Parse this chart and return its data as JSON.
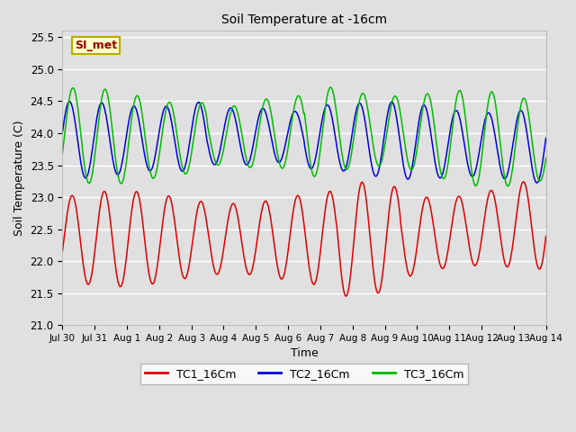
{
  "title": "Soil Temperature at -16cm",
  "xlabel": "Time",
  "ylabel": "Soil Temperature (C)",
  "ylim": [
    21.0,
    25.6
  ],
  "yticks": [
    21.0,
    21.5,
    22.0,
    22.5,
    23.0,
    23.5,
    24.0,
    24.5,
    25.0,
    25.5
  ],
  "bg_color": "#e0e0e0",
  "plot_bg_color": "#e0e0e0",
  "grid_color": "white",
  "annotation_text": "SI_met",
  "annotation_bg": "#ffffcc",
  "annotation_border": "#bbaa00",
  "annotation_text_color": "#990000",
  "tc1_color": "#dd0000",
  "tc2_color": "#0000dd",
  "tc3_color": "#00bb00",
  "legend_labels": [
    "TC1_16Cm",
    "TC2_16Cm",
    "TC3_16Cm"
  ],
  "xtick_labels": [
    "Jul 30",
    "Jul 31",
    "Aug 1",
    "Aug 2",
    "Aug 3",
    "Aug 4",
    "Aug 5",
    "Aug 6",
    "Aug 7",
    "Aug 8",
    "Aug 9",
    "Aug 10",
    "Aug 11",
    "Aug 12",
    "Aug 13",
    "Aug 14"
  ],
  "linewidth": 1.1
}
